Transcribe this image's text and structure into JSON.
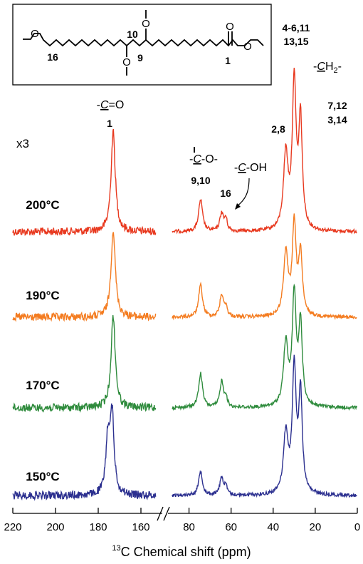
{
  "figure": {
    "xlabel_sup": "13",
    "xlabel_main": "C Chemical shift (ppm)",
    "scale_note": "x3"
  },
  "structure": {
    "labels": [
      "16",
      "10",
      "9",
      "1"
    ]
  },
  "annotations": [
    {
      "id": "carbonyl-group",
      "text": "-C=O",
      "sub": "1"
    },
    {
      "id": "ether-carbon-group",
      "text": "-C-O-",
      "sub": "9,10"
    },
    {
      "id": "hydroxyl-carbon-group",
      "text": "-C-OH",
      "sub": "16"
    },
    {
      "id": "methylene-group",
      "text": "-CH2-"
    },
    {
      "id": "peak-2-8",
      "text": "2,8"
    },
    {
      "id": "peak-4-6-11",
      "text": "4-6,11"
    },
    {
      "id": "peak-13-15",
      "text": "13,15"
    },
    {
      "id": "peak-7-12",
      "text": "7,12"
    },
    {
      "id": "peak-3-14",
      "text": "3,14"
    }
  ],
  "chart_data": {
    "type": "line",
    "title": "",
    "xlabel": "13C Chemical shift (ppm)",
    "ylabel": "",
    "x_axis_reversed": true,
    "x_axis_broken": true,
    "segments": [
      {
        "range": [
          220,
          150
        ],
        "note": "x3"
      },
      {
        "range": [
          90,
          0
        ]
      }
    ],
    "x_ticks": [
      220,
      200,
      180,
      160,
      80,
      60,
      40,
      20,
      0
    ],
    "grid": false,
    "legend": "none",
    "series": [
      {
        "name": "200°C",
        "color": "#e8391f",
        "peaks": [
          {
            "ppm": 173,
            "height": 1.0,
            "width": 1.2
          },
          {
            "ppm": 74.5,
            "height": 0.32,
            "width": 1.1
          },
          {
            "ppm": 64.5,
            "height": 0.18,
            "width": 1.0
          },
          {
            "ppm": 62.5,
            "height": 0.12,
            "width": 0.8
          },
          {
            "ppm": 34.0,
            "height": 0.75,
            "width": 1.3
          },
          {
            "ppm": 30.0,
            "height": 1.45,
            "width": 1.1
          },
          {
            "ppm": 27.0,
            "height": 1.08,
            "width": 1.0
          }
        ]
      },
      {
        "name": "190°C",
        "color": "#f47c20",
        "peaks": [
          {
            "ppm": 173,
            "height": 0.88,
            "width": 1.2
          },
          {
            "ppm": 74.5,
            "height": 0.32,
            "width": 1.1
          },
          {
            "ppm": 64.5,
            "height": 0.22,
            "width": 1.0
          },
          {
            "ppm": 62.5,
            "height": 0.1,
            "width": 0.8
          },
          {
            "ppm": 34.0,
            "height": 0.62,
            "width": 1.3
          },
          {
            "ppm": 30.0,
            "height": 0.9,
            "width": 1.1
          },
          {
            "ppm": 27.0,
            "height": 0.62,
            "width": 1.0
          }
        ]
      },
      {
        "name": "170°C",
        "color": "#2e8b3c",
        "peaks": [
          {
            "ppm": 173,
            "height": 0.92,
            "width": 1.2
          },
          {
            "ppm": 74.5,
            "height": 0.34,
            "width": 1.1
          },
          {
            "ppm": 64.5,
            "height": 0.26,
            "width": 1.0
          },
          {
            "ppm": 62.5,
            "height": 0.1,
            "width": 0.8
          },
          {
            "ppm": 34.0,
            "height": 0.62,
            "width": 1.3
          },
          {
            "ppm": 30.0,
            "height": 1.1,
            "width": 1.1
          },
          {
            "ppm": 27.0,
            "height": 0.82,
            "width": 1.0
          }
        ]
      },
      {
        "name": "150°C",
        "color": "#2b2f8f",
        "peaks": [
          {
            "ppm": 175.5,
            "height": 0.55,
            "width": 1.1
          },
          {
            "ppm": 173.5,
            "height": 0.78,
            "width": 1.1
          },
          {
            "ppm": 74.5,
            "height": 0.24,
            "width": 1.1
          },
          {
            "ppm": 64.5,
            "height": 0.18,
            "width": 1.0
          },
          {
            "ppm": 62.5,
            "height": 0.08,
            "width": 0.8
          },
          {
            "ppm": 34.0,
            "height": 0.6,
            "width": 1.3
          },
          {
            "ppm": 30.0,
            "height": 1.25,
            "width": 1.1
          },
          {
            "ppm": 27.0,
            "height": 1.0,
            "width": 1.0
          }
        ]
      }
    ]
  }
}
